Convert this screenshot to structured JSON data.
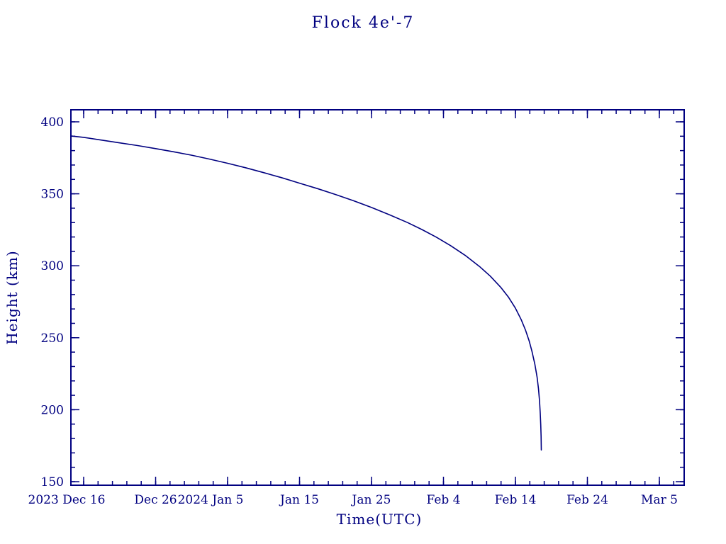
{
  "page": {
    "background": "#ffffff",
    "accent_color": "#000080"
  },
  "chart_data": {
    "type": "line",
    "title": "Flock 4e'-7",
    "xlabel": "Time(UTC)",
    "ylabel": "Height (km)",
    "color": "#000080",
    "grid": false,
    "legend": "none",
    "ylim": [
      150,
      400
    ],
    "x_epoch": "2023 Dec 16",
    "x_range_days": [
      -1.77,
      83.4
    ],
    "x_tick_days": [
      0,
      10,
      20,
      30,
      40,
      50,
      60,
      70,
      80
    ],
    "x_tick_labels": [
      "2023 Dec 16",
      "Dec 26",
      "2024 Jan 5",
      "Jan 15",
      "Jan 25",
      "Feb 4",
      "Feb 14",
      "Feb 24",
      "Mar 5"
    ],
    "x_minor_step_days": 2,
    "y_tick_values": [
      150,
      200,
      250,
      300,
      350,
      400
    ],
    "y_minor_step": 10,
    "series": [
      {
        "name": "Flock 4e'-7 height",
        "color": "#000080",
        "points_day_km": [
          [
            -1.77,
            390.2
          ],
          [
            0,
            389.2
          ],
          [
            2.5,
            387.3
          ],
          [
            5,
            385.4
          ],
          [
            7.5,
            383.5
          ],
          [
            10,
            381.4
          ],
          [
            12.5,
            379.2
          ],
          [
            15,
            376.8
          ],
          [
            17.5,
            374.1
          ],
          [
            20,
            371.2
          ],
          [
            22.5,
            368.1
          ],
          [
            25,
            364.7
          ],
          [
            27.5,
            361.2
          ],
          [
            30,
            357.4
          ],
          [
            32.5,
            353.6
          ],
          [
            35,
            349.5
          ],
          [
            37.5,
            345.2
          ],
          [
            40,
            340.5
          ],
          [
            42.5,
            335.4
          ],
          [
            45,
            330.0
          ],
          [
            47,
            325.2
          ],
          [
            49,
            319.9
          ],
          [
            51,
            314.0
          ],
          [
            53,
            307.3
          ],
          [
            55,
            299.5
          ],
          [
            56.5,
            292.8
          ],
          [
            58,
            284.8
          ],
          [
            59,
            278.4
          ],
          [
            60,
            270.5
          ],
          [
            60.8,
            262.6
          ],
          [
            61.4,
            255.3
          ],
          [
            61.9,
            247.9
          ],
          [
            62.3,
            240.6
          ],
          [
            62.7,
            231.6
          ],
          [
            63.0,
            222.8
          ],
          [
            63.2,
            214.6
          ],
          [
            63.35,
            206.0
          ],
          [
            63.45,
            197.5
          ],
          [
            63.52,
            189.5
          ],
          [
            63.57,
            181.5
          ],
          [
            63.6,
            172.0
          ]
        ]
      }
    ]
  }
}
